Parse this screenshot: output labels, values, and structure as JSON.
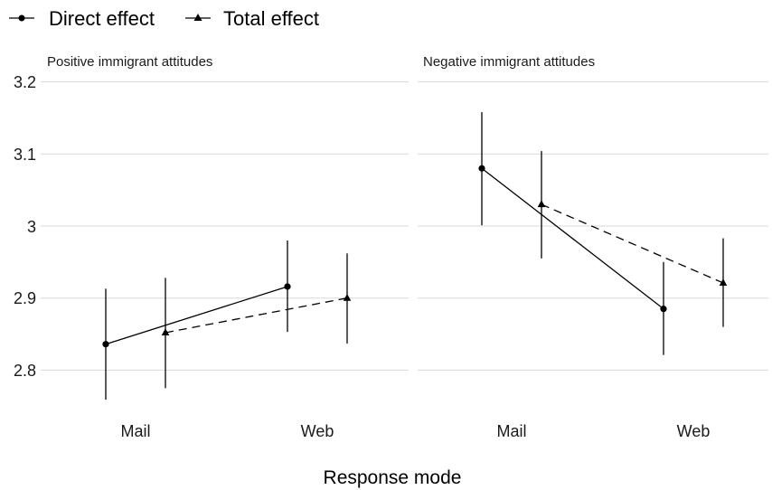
{
  "chart_data": {
    "type": "line",
    "xlabel": "Response mode",
    "ylim": [
      2.75,
      3.21
    ],
    "y_ticks": [
      2.8,
      2.9,
      3.0,
      3.1,
      3.2
    ],
    "y_tick_labels": [
      "2.8",
      "2.9",
      "3",
      "3.1",
      "3.2"
    ],
    "categories": [
      "Mail",
      "Web"
    ],
    "legend": {
      "position": "top-left"
    },
    "series_styles": [
      {
        "name": "Direct effect",
        "marker": "circle",
        "dash": "solid",
        "color": "#000000"
      },
      {
        "name": "Total effect",
        "marker": "triangle",
        "dash": "dashed",
        "color": "#000000"
      }
    ],
    "panels": [
      {
        "title": "Positive immigrant attitudes",
        "series": [
          {
            "name": "Direct effect",
            "values": [
              2.836,
              2.916
            ],
            "lower": [
              2.759,
              2.853
            ],
            "upper": [
              2.913,
              2.98
            ]
          },
          {
            "name": "Total effect",
            "values": [
              2.852,
              2.9
            ],
            "lower": [
              2.775,
              2.837
            ],
            "upper": [
              2.928,
              2.962
            ]
          }
        ]
      },
      {
        "title": "Negative immigrant attitudes",
        "series": [
          {
            "name": "Direct effect",
            "values": [
              3.08,
              2.885
            ],
            "lower": [
              3.001,
              2.821
            ],
            "upper": [
              3.158,
              2.95
            ]
          },
          {
            "name": "Total effect",
            "values": [
              3.03,
              2.921
            ],
            "lower": [
              2.955,
              2.86
            ],
            "upper": [
              3.104,
              2.983
            ]
          }
        ]
      }
    ]
  }
}
